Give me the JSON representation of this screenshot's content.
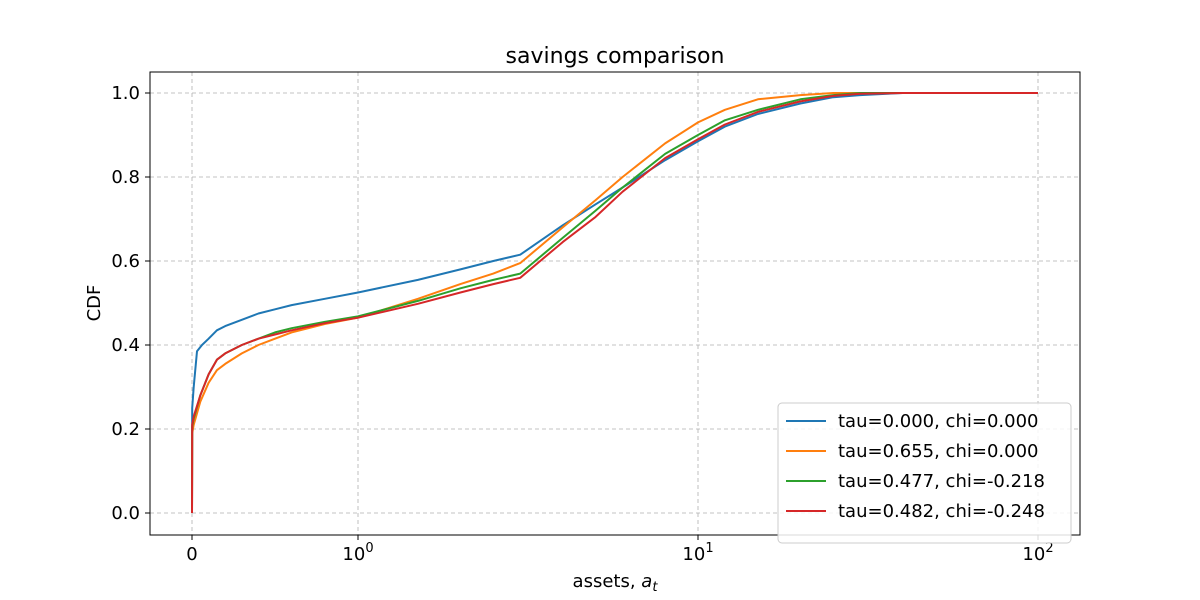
{
  "chart_data": {
    "type": "line",
    "title": "savings comparison",
    "xlabel": "assets, a_t",
    "ylabel": "CDF",
    "x_scale": "symlog",
    "y_range": [
      -0.05,
      1.05
    ],
    "x_ticks": [
      {
        "value": 0,
        "base": "0",
        "exp": ""
      },
      {
        "value": 1,
        "base": "10",
        "exp": "0"
      },
      {
        "value": 10,
        "base": "10",
        "exp": "1"
      },
      {
        "value": 100,
        "base": "10",
        "exp": "2"
      }
    ],
    "y_ticks": [
      "0.0",
      "0.2",
      "0.4",
      "0.6",
      "0.8",
      "1.0"
    ],
    "grid": true,
    "legend_position": "lower right",
    "series": [
      {
        "name": "tau=0.000, chi=0.000",
        "color": "#1f77b4",
        "x": [
          0,
          0.001,
          0.01,
          0.03,
          0.06,
          0.1,
          0.15,
          0.2,
          0.3,
          0.4,
          0.5,
          0.6,
          0.8,
          1.0,
          1.5,
          2.0,
          2.5,
          3.0,
          4.0,
          5.0,
          6.0,
          8.0,
          10,
          12,
          15,
          20,
          25,
          30,
          40,
          60,
          100
        ],
        "y": [
          0,
          0.25,
          0.3,
          0.385,
          0.4,
          0.415,
          0.435,
          0.445,
          0.46,
          0.475,
          0.485,
          0.495,
          0.51,
          0.525,
          0.555,
          0.58,
          0.6,
          0.615,
          0.685,
          0.735,
          0.775,
          0.84,
          0.885,
          0.92,
          0.95,
          0.975,
          0.99,
          0.995,
          1.0,
          1.0,
          1.0
        ]
      },
      {
        "name": "tau=0.655, chi=0.000",
        "color": "#ff7f0e",
        "x": [
          0,
          0.001,
          0.01,
          0.05,
          0.1,
          0.15,
          0.2,
          0.3,
          0.4,
          0.5,
          0.6,
          0.8,
          1.0,
          1.5,
          2.0,
          2.5,
          3.0,
          4.0,
          5.0,
          6.0,
          8.0,
          10,
          12,
          15,
          20,
          25,
          30,
          40,
          60,
          100
        ],
        "y": [
          0,
          0.19,
          0.21,
          0.265,
          0.31,
          0.34,
          0.355,
          0.38,
          0.4,
          0.415,
          0.43,
          0.45,
          0.465,
          0.51,
          0.545,
          0.57,
          0.595,
          0.68,
          0.745,
          0.8,
          0.88,
          0.93,
          0.96,
          0.985,
          0.995,
          1.0,
          1.0,
          1.0,
          1.0,
          1.0
        ]
      },
      {
        "name": "tau=0.477, chi=-0.218",
        "color": "#2ca02c",
        "x": [
          0,
          0.001,
          0.01,
          0.05,
          0.1,
          0.15,
          0.2,
          0.3,
          0.4,
          0.5,
          0.6,
          0.8,
          1.0,
          1.5,
          2.0,
          2.5,
          3.0,
          4.0,
          5.0,
          6.0,
          8.0,
          10,
          12,
          15,
          20,
          25,
          30,
          40,
          60,
          100
        ],
        "y": [
          0,
          0.205,
          0.225,
          0.28,
          0.33,
          0.365,
          0.38,
          0.4,
          0.415,
          0.43,
          0.44,
          0.455,
          0.468,
          0.505,
          0.535,
          0.555,
          0.57,
          0.655,
          0.72,
          0.775,
          0.855,
          0.9,
          0.935,
          0.96,
          0.985,
          0.995,
          1.0,
          1.0,
          1.0,
          1.0
        ]
      },
      {
        "name": "tau=0.482, chi=-0.248",
        "color": "#d62728",
        "x": [
          0,
          0.001,
          0.01,
          0.05,
          0.1,
          0.15,
          0.2,
          0.3,
          0.4,
          0.5,
          0.6,
          0.8,
          1.0,
          1.5,
          2.0,
          2.5,
          3.0,
          4.0,
          5.0,
          6.0,
          8.0,
          10,
          12,
          15,
          20,
          25,
          30,
          40,
          60,
          100
        ],
        "y": [
          0,
          0.21,
          0.23,
          0.28,
          0.33,
          0.365,
          0.38,
          0.4,
          0.415,
          0.425,
          0.435,
          0.452,
          0.465,
          0.498,
          0.525,
          0.545,
          0.56,
          0.645,
          0.705,
          0.765,
          0.845,
          0.89,
          0.925,
          0.955,
          0.98,
          0.993,
          0.998,
          1.0,
          1.0,
          1.0
        ]
      }
    ]
  }
}
